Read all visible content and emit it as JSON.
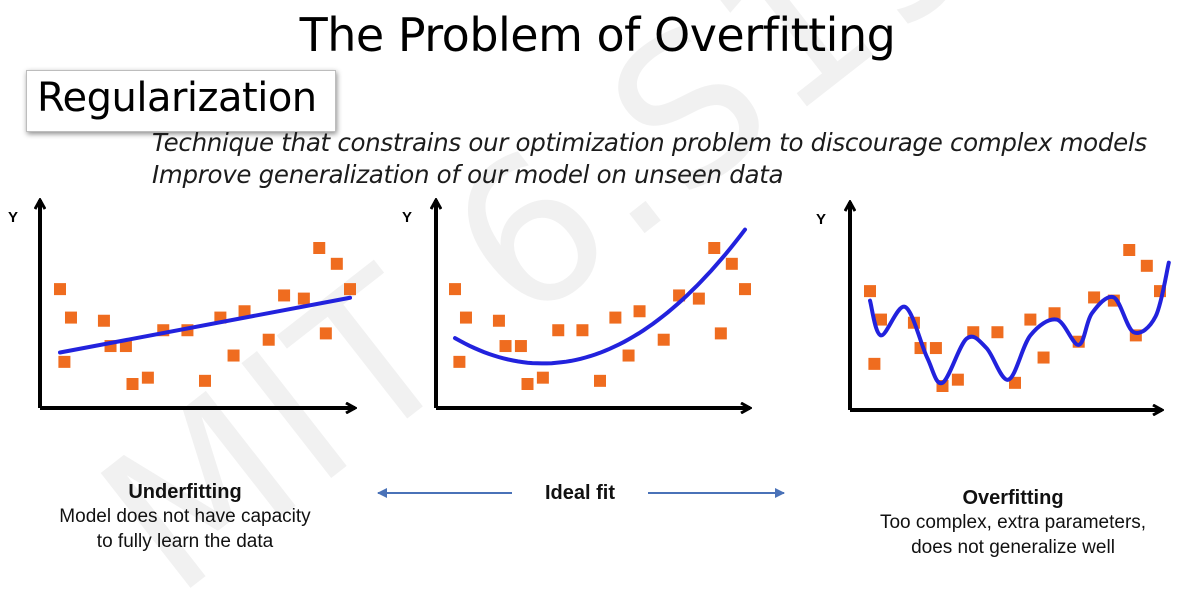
{
  "title": "The Problem of Overfitting",
  "section_label": "Regularization",
  "description": [
    "Technique that constrains our optimization problem to discourage complex models",
    "Improve generalization of our model on unseen data"
  ],
  "watermark_text": "MIT 6.S191",
  "axis_y_label": "Y",
  "middle_label": "Ideal fit",
  "captions": {
    "left": {
      "title": "Underfitting",
      "lines": [
        "Model does not have capacity",
        "to fully learn the data"
      ]
    },
    "right": {
      "title": "Overfitting",
      "lines": [
        "Too complex, extra parameters,",
        "does not generalize well"
      ]
    }
  },
  "colors": {
    "points": "#ef6c1f",
    "fit_line": "#2222dd",
    "arrow": "#4a72b8",
    "axes": "#000000"
  },
  "chart_data": [
    {
      "type": "scatter",
      "title": "Underfitting",
      "points": [
        [
          1,
          6.2
        ],
        [
          1.5,
          5.3
        ],
        [
          1.2,
          3.9
        ],
        [
          3,
          5.2
        ],
        [
          3.3,
          4.4
        ],
        [
          4,
          4.4
        ],
        [
          4.3,
          3.2
        ],
        [
          5,
          3.4
        ],
        [
          5.7,
          4.9
        ],
        [
          6.8,
          4.9
        ],
        [
          7.6,
          3.3
        ],
        [
          8.3,
          5.3
        ],
        [
          8.9,
          4.1
        ],
        [
          9.4,
          5.5
        ],
        [
          10.5,
          4.6
        ],
        [
          11.2,
          6.0
        ],
        [
          12.1,
          5.9
        ],
        [
          12.8,
          7.5
        ],
        [
          13.1,
          4.8
        ],
        [
          13.6,
          7.0
        ],
        [
          14.2,
          6.2
        ]
      ],
      "fit": {
        "shape": "linear"
      }
    },
    {
      "type": "scatter",
      "title": "Ideal fit",
      "points": [
        [
          1,
          6.2
        ],
        [
          1.5,
          5.3
        ],
        [
          1.2,
          3.9
        ],
        [
          3,
          5.2
        ],
        [
          3.3,
          4.4
        ],
        [
          4,
          4.4
        ],
        [
          4.3,
          3.2
        ],
        [
          5,
          3.4
        ],
        [
          5.7,
          4.9
        ],
        [
          6.8,
          4.9
        ],
        [
          7.6,
          3.3
        ],
        [
          8.3,
          5.3
        ],
        [
          8.9,
          4.1
        ],
        [
          9.4,
          5.5
        ],
        [
          10.5,
          4.6
        ],
        [
          11.2,
          6.0
        ],
        [
          12.1,
          5.9
        ],
        [
          12.8,
          7.5
        ],
        [
          13.1,
          4.8
        ],
        [
          13.6,
          7.0
        ],
        [
          14.2,
          6.2
        ]
      ],
      "fit": {
        "shape": "quadratic"
      }
    },
    {
      "type": "scatter",
      "title": "Overfitting",
      "points": [
        [
          1,
          6.2
        ],
        [
          1.5,
          5.3
        ],
        [
          1.2,
          3.9
        ],
        [
          3,
          5.2
        ],
        [
          3.3,
          4.4
        ],
        [
          4,
          4.4
        ],
        [
          4.3,
          3.2
        ],
        [
          5,
          3.4
        ],
        [
          5.7,
          4.9
        ],
        [
          6.8,
          4.9
        ],
        [
          7.6,
          3.3
        ],
        [
          8.3,
          5.3
        ],
        [
          8.9,
          4.1
        ],
        [
          9.4,
          5.5
        ],
        [
          10.5,
          4.6
        ],
        [
          11.2,
          6.0
        ],
        [
          12.1,
          5.9
        ],
        [
          12.8,
          7.5
        ],
        [
          13.1,
          4.8
        ],
        [
          13.6,
          7.0
        ],
        [
          14.2,
          6.2
        ]
      ],
      "fit": {
        "shape": "interpolating"
      }
    }
  ]
}
